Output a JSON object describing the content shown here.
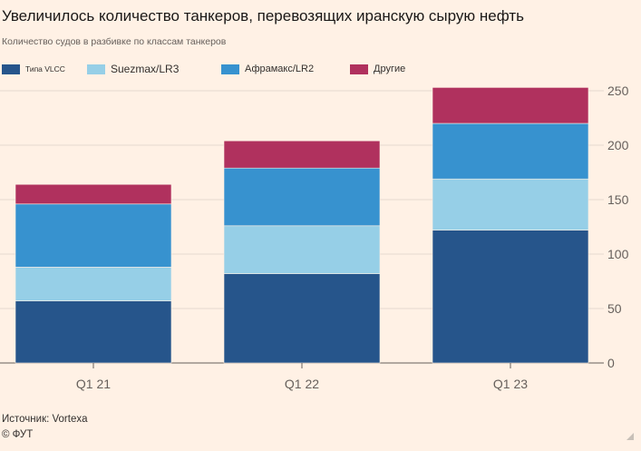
{
  "header": {
    "title": "Увеличилось количество танкеров, перевозящих иранскую сырую нефть",
    "subtitle": "Количество судов в разбивке по классам танкеров"
  },
  "footer": {
    "source": "Источник: Vortexa",
    "credit": "© ФУТ"
  },
  "chart_data": {
    "type": "bar",
    "stacked": true,
    "title": "Увеличилось количество танкеров, перевозящих иранскую сырую нефть",
    "subtitle": "Количество судов в разбивке по классам танкеров",
    "xlabel": "",
    "ylabel": "",
    "ylim": [
      0,
      250
    ],
    "yticks": [
      0,
      50,
      100,
      150,
      200,
      250
    ],
    "y_axis_side": "right",
    "grid": true,
    "legend_position": "top",
    "categories": [
      "Q1 21",
      "Q1 22",
      "Q1 23"
    ],
    "series": [
      {
        "name": "Типа VLCC",
        "color": "#26558b",
        "values": [
          57,
          82,
          122
        ]
      },
      {
        "name": "Suezmax/LR3",
        "color": "#96cfe7",
        "values": [
          31,
          44,
          47
        ]
      },
      {
        "name": "Афрамакс/LR2",
        "color": "#3792cf",
        "values": [
          58,
          53,
          51
        ]
      },
      {
        "name": "Другие",
        "color": "#b0315e",
        "values": [
          18,
          25,
          33
        ]
      }
    ]
  }
}
